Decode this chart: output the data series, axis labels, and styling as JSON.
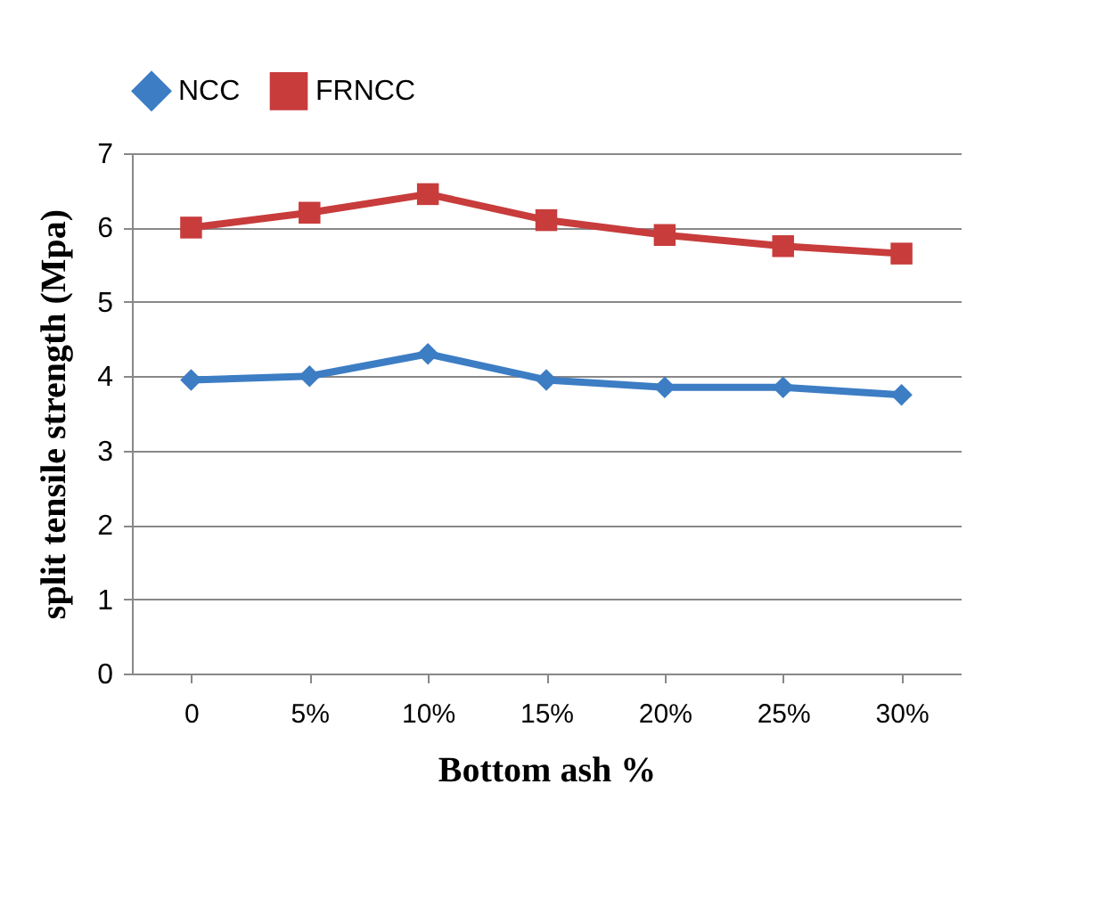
{
  "chart_data": {
    "type": "line",
    "xlabel": "Bottom ash %",
    "ylabel": "split tensile strength (Mpa)",
    "categories": [
      "0",
      "5%",
      "10%",
      "15%",
      "20%",
      "25%",
      "30%"
    ],
    "series": [
      {
        "name": "NCC",
        "color": "#3c7dc4",
        "marker": "diamond",
        "values": [
          3.95,
          4.0,
          4.3,
          3.95,
          3.85,
          3.85,
          3.75
        ]
      },
      {
        "name": "FRNCC",
        "color": "#c83c3c",
        "marker": "square",
        "values": [
          6.0,
          6.2,
          6.45,
          6.1,
          5.9,
          5.75,
          5.65
        ]
      }
    ],
    "ylim": [
      0,
      7
    ],
    "yticks": [
      0,
      1,
      2,
      3,
      4,
      5,
      6,
      7
    ],
    "grid": "y",
    "legend": "top"
  }
}
